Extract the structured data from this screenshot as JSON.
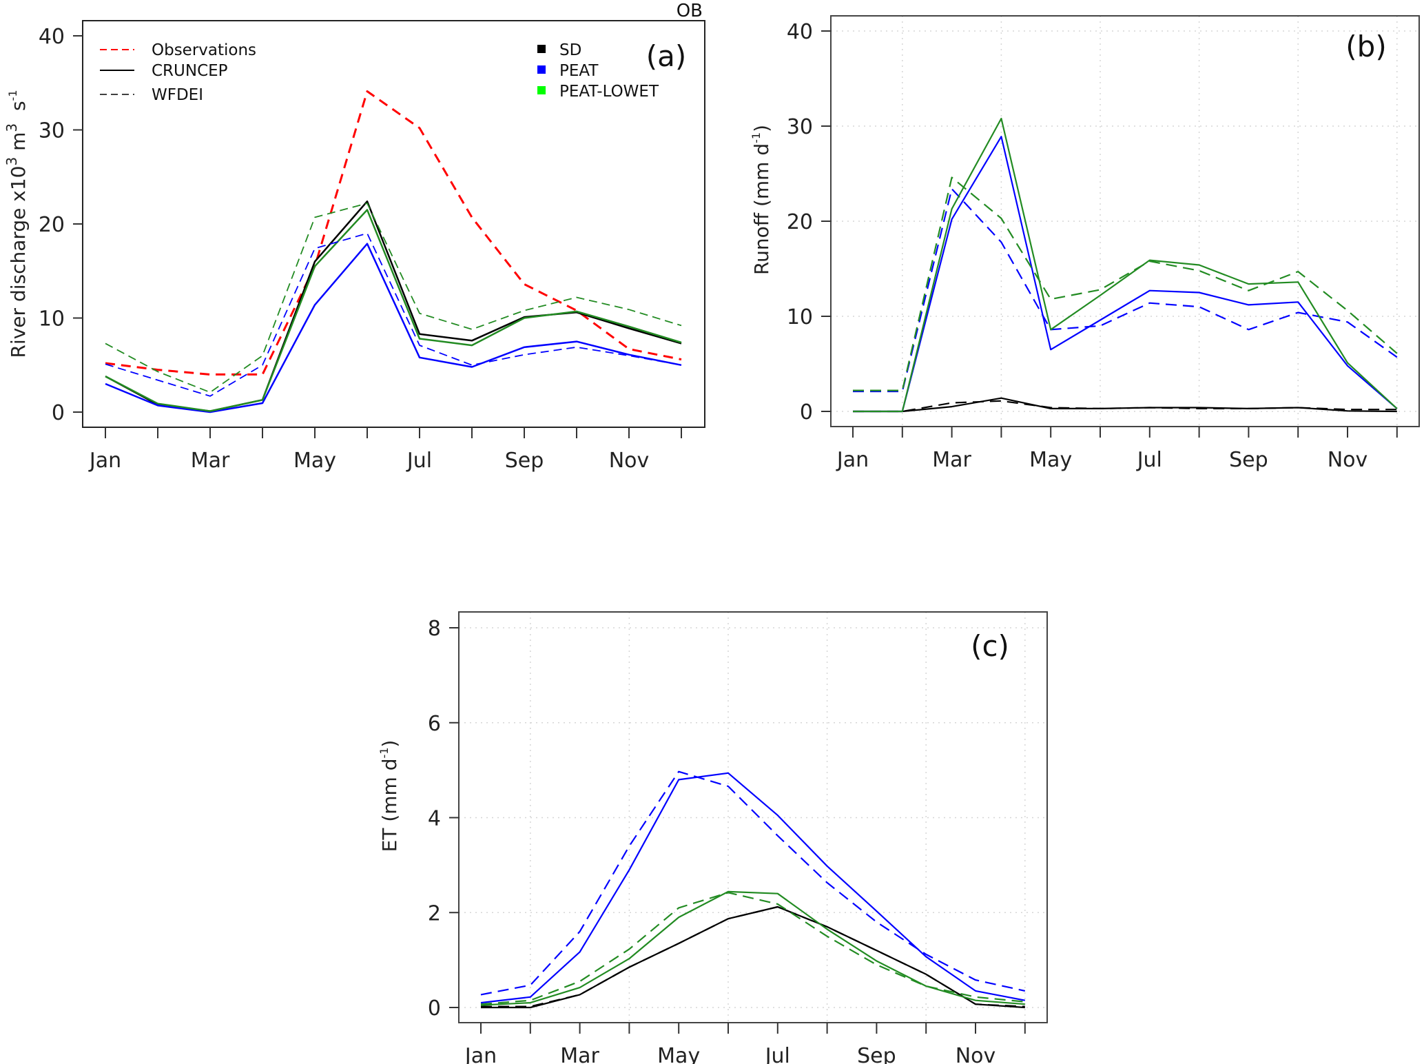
{
  "corner_label": "OB",
  "colors": {
    "observations": "#ff0000",
    "SD": "#000000",
    "PEAT": "#0000ff",
    "PEAT-LOWET": "#228b22",
    "PEAT-LOWET_legend": "#00ff00",
    "grid": "#d0d0d0",
    "frame": "#333333"
  },
  "legend": {
    "line_styles": [
      {
        "label": "Observations",
        "style": "dashed",
        "color": "#ff0000"
      },
      {
        "label": "CRUNCEP",
        "style": "solid",
        "color": "#000000"
      },
      {
        "label": "WFDEI",
        "style": "dashed",
        "color": "#000000"
      }
    ],
    "experiments": [
      {
        "label": "SD",
        "color": "#000000"
      },
      {
        "label": "PEAT",
        "color": "#0000ff"
      },
      {
        "label": "PEAT-LOWET",
        "color": "#00ff00"
      }
    ]
  },
  "chart_data": [
    {
      "type": "line",
      "panel": "(a)",
      "title": "",
      "ylabel": "River discharge x10³ m³ s⁻¹",
      "ylabel_parts": {
        "main": "River discharge x10",
        "sup1": "3",
        "mid": " m",
        "sup2": "3",
        "mid2": "  s",
        "sup3": "-1"
      },
      "xlabel": "",
      "x": [
        "Jan",
        "Feb",
        "Mar",
        "Apr",
        "May",
        "Jun",
        "Jul",
        "Aug",
        "Sep",
        "Oct",
        "Nov",
        "Dec"
      ],
      "x_tick_labels": [
        "Jan",
        "",
        "Mar",
        "",
        "May",
        "",
        "Jul",
        "",
        "Sep",
        "",
        "Nov",
        ""
      ],
      "yticks": [
        0,
        10,
        20,
        30,
        40
      ],
      "ylim": [
        -1.5,
        41.3
      ],
      "grid": false,
      "legend_placement": "top-left and top-right",
      "series": [
        {
          "name": "Observations",
          "forcing": "OBS",
          "color": "#ff0000",
          "style": "dashed",
          "width": 3,
          "values": [
            5.2,
            4.5,
            4.0,
            4.0,
            15.5,
            34.1,
            30.2,
            20.7,
            13.6,
            10.8,
            6.7,
            5.6
          ]
        },
        {
          "name": "SD CRUNCEP",
          "color": "#000000",
          "style": "solid",
          "width": 2.5,
          "values": [
            3.8,
            0.8,
            0.1,
            1.3,
            16.0,
            22.4,
            8.3,
            7.6,
            10.1,
            10.6,
            8.9,
            7.3
          ]
        },
        {
          "name": "PEAT CRUNCEP",
          "color": "#0000ff",
          "style": "solid",
          "width": 2.5,
          "values": [
            3.0,
            0.7,
            0.0,
            0.95,
            11.4,
            17.9,
            5.8,
            4.8,
            6.9,
            7.5,
            6.1,
            5.0
          ]
        },
        {
          "name": "PEAT-LOWET CRUNCEP",
          "color": "#228b22",
          "style": "solid",
          "width": 2.5,
          "values": [
            3.8,
            0.9,
            0.1,
            1.3,
            15.5,
            21.5,
            7.8,
            7.1,
            10.0,
            10.7,
            9.1,
            7.4
          ]
        },
        {
          "name": "PEAT WFDEI",
          "color": "#0000ff",
          "style": "dashed",
          "width": 1.8,
          "values": [
            5.1,
            3.4,
            1.7,
            5.0,
            17.4,
            19.0,
            7.1,
            5.0,
            6.1,
            6.9,
            6.0,
            5.0
          ]
        },
        {
          "name": "PEAT-LOWET WFDEI",
          "color": "#228b22",
          "style": "dashed",
          "width": 1.8,
          "values": [
            7.3,
            4.3,
            2.1,
            6.0,
            20.7,
            22.2,
            10.5,
            8.8,
            10.8,
            12.2,
            10.9,
            9.2
          ]
        }
      ]
    },
    {
      "type": "line",
      "panel": "(b)",
      "title": "",
      "ylabel": "Runoff (mm d⁻¹)",
      "ylabel_parts": {
        "main": "Runoff (mm d",
        "sup": "-1",
        "end": ")"
      },
      "xlabel": "",
      "x": [
        "Jan",
        "Feb",
        "Mar",
        "Apr",
        "May",
        "Jun",
        "Jul",
        "Aug",
        "Sep",
        "Oct",
        "Nov",
        "Dec"
      ],
      "x_tick_labels": [
        "Jan",
        "",
        "Mar",
        "",
        "May",
        "",
        "Jul",
        "",
        "Sep",
        "",
        "Nov",
        ""
      ],
      "yticks": [
        0,
        10,
        20,
        30,
        40
      ],
      "ylim": [
        -1.6,
        41.6
      ],
      "grid": true,
      "series": [
        {
          "name": "SD CRUNCEP",
          "color": "#000000",
          "style": "solid",
          "width": 2.2,
          "values": [
            0.0,
            0.0,
            0.5,
            1.4,
            0.3,
            0.3,
            0.4,
            0.4,
            0.3,
            0.4,
            0.05,
            0.0
          ]
        },
        {
          "name": "SD WFDEI",
          "color": "#000000",
          "style": "dashed",
          "width": 2.2,
          "values": [
            0.0,
            0.0,
            0.9,
            1.1,
            0.4,
            0.3,
            0.4,
            0.3,
            0.3,
            0.4,
            0.2,
            0.2
          ]
        },
        {
          "name": "PEAT CRUNCEP",
          "color": "#0000ff",
          "style": "solid",
          "width": 2.2,
          "values": [
            0.0,
            0.0,
            20.2,
            28.9,
            6.5,
            9.6,
            12.7,
            12.5,
            11.2,
            11.5,
            4.8,
            0.3
          ]
        },
        {
          "name": "PEAT WFDEI",
          "color": "#0000ff",
          "style": "dashed",
          "width": 2.2,
          "values": [
            2.1,
            2.1,
            23.4,
            17.8,
            8.6,
            9.0,
            11.4,
            11.0,
            8.6,
            10.4,
            9.4,
            5.7
          ]
        },
        {
          "name": "PEAT-LOWET CRUNCEP",
          "color": "#228b22",
          "style": "solid",
          "width": 2.2,
          "values": [
            0.0,
            0.0,
            21.3,
            30.8,
            8.6,
            12.2,
            15.9,
            15.4,
            13.4,
            13.6,
            5.1,
            0.3
          ]
        },
        {
          "name": "PEAT-LOWET WFDEI",
          "color": "#228b22",
          "style": "dashed",
          "width": 2.2,
          "values": [
            2.2,
            2.2,
            24.6,
            20.3,
            11.8,
            12.8,
            15.8,
            14.8,
            12.7,
            14.7,
            10.6,
            6.1
          ]
        }
      ]
    },
    {
      "type": "line",
      "panel": "(c)",
      "title": "",
      "ylabel": "ET (mm d⁻¹)",
      "ylabel_parts": {
        "main": "ET (mm d",
        "sup": "-1",
        "end": ")"
      },
      "xlabel": "",
      "x": [
        "Jan",
        "Feb",
        "Mar",
        "Apr",
        "May",
        "Jun",
        "Jul",
        "Aug",
        "Sep",
        "Oct",
        "Nov",
        "Dec"
      ],
      "x_tick_labels": [
        "Jan",
        "",
        "Mar",
        "",
        "May",
        "",
        "Jul",
        "",
        "Sep",
        "",
        "Nov",
        ""
      ],
      "yticks": [
        0,
        2,
        4,
        6,
        8
      ],
      "ylim": [
        -0.33,
        8.35
      ],
      "grid": true,
      "series": [
        {
          "name": "SD CRUNCEP",
          "color": "#000000",
          "style": "solid",
          "width": 2.2,
          "values": [
            0.0,
            0.0,
            0.27,
            0.85,
            1.35,
            1.87,
            2.12,
            1.7,
            1.2,
            0.7,
            0.07,
            0.0
          ]
        },
        {
          "name": "SD WFDEI",
          "color": "#000000",
          "style": "dashed",
          "width": 2.2,
          "values": [
            0.02,
            0.02,
            0.27,
            0.85,
            1.35,
            1.87,
            2.12,
            1.7,
            1.2,
            0.7,
            0.07,
            0.02
          ]
        },
        {
          "name": "PEAT CRUNCEP",
          "color": "#0000ff",
          "style": "solid",
          "width": 2.2,
          "values": [
            0.1,
            0.22,
            1.17,
            2.9,
            4.8,
            4.94,
            4.05,
            2.98,
            2.03,
            1.07,
            0.35,
            0.15
          ]
        },
        {
          "name": "PEAT WFDEI",
          "color": "#0000ff",
          "style": "dashed",
          "width": 2.2,
          "values": [
            0.27,
            0.47,
            1.6,
            3.4,
            4.97,
            4.66,
            3.62,
            2.63,
            1.8,
            1.12,
            0.58,
            0.35
          ]
        },
        {
          "name": "PEAT-LOWET CRUNCEP",
          "color": "#228b22",
          "style": "solid",
          "width": 2.2,
          "values": [
            0.05,
            0.1,
            0.42,
            1.03,
            1.9,
            2.44,
            2.4,
            1.65,
            0.98,
            0.45,
            0.15,
            0.07
          ]
        },
        {
          "name": "PEAT-LOWET WFDEI",
          "color": "#228b22",
          "style": "dashed",
          "width": 2.2,
          "values": [
            0.07,
            0.15,
            0.55,
            1.23,
            2.1,
            2.42,
            2.18,
            1.5,
            0.9,
            0.45,
            0.22,
            0.12
          ]
        }
      ]
    }
  ]
}
